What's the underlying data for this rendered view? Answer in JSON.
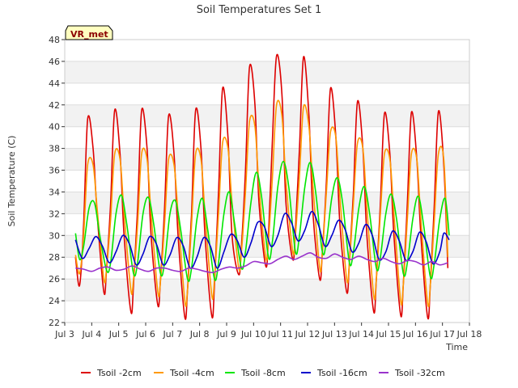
{
  "chart_data": {
    "type": "line",
    "title": "Soil Temperatures Set 1",
    "xlabel": "Time",
    "ylabel": "Soil Temperature (C)",
    "badge": "VR_met",
    "xlim": [
      3,
      18
    ],
    "ylim": [
      22,
      48
    ],
    "x_ticks": [
      {
        "x": 3,
        "label": "Jul 3"
      },
      {
        "x": 4,
        "label": "Jul 4"
      },
      {
        "x": 5,
        "label": "Jul 5"
      },
      {
        "x": 6,
        "label": "Jul 6"
      },
      {
        "x": 7,
        "label": "Jul 7"
      },
      {
        "x": 8,
        "label": "Jul 8"
      },
      {
        "x": 9,
        "label": "Jul 9"
      },
      {
        "x": 10,
        "label": "Jul 10"
      },
      {
        "x": 11,
        "label": "Jul 11"
      },
      {
        "x": 12,
        "label": "Jul 12"
      },
      {
        "x": 13,
        "label": "Jul 13"
      },
      {
        "x": 14,
        "label": "Jul 14"
      },
      {
        "x": 15,
        "label": "Jul 15"
      },
      {
        "x": 16,
        "label": "Jul 16"
      },
      {
        "x": 17,
        "label": "Jul 17"
      },
      {
        "x": 18,
        "label": "Jul 18"
      }
    ],
    "y_ticks": [
      22,
      24,
      26,
      28,
      30,
      32,
      34,
      36,
      38,
      40,
      42,
      44,
      46,
      48
    ],
    "grid": "horizontal bands",
    "legend_position": "bottom",
    "series": [
      {
        "name": "Tsoil -2cm",
        "color": "#dd0000",
        "x": [
          3.4,
          3.55,
          3.7,
          3.85,
          4.05,
          4.2,
          4.45,
          4.55,
          4.7,
          4.85,
          5.05,
          5.2,
          5.45,
          5.55,
          5.7,
          5.85,
          6.05,
          6.2,
          6.45,
          6.55,
          6.7,
          6.85,
          7.05,
          7.2,
          7.45,
          7.55,
          7.7,
          7.85,
          8.05,
          8.2,
          8.45,
          8.55,
          8.7,
          8.85,
          9.05,
          9.2,
          9.45,
          9.55,
          9.7,
          9.85,
          10.05,
          10.2,
          10.45,
          10.55,
          10.7,
          10.85,
          11.05,
          11.2,
          11.45,
          11.55,
          11.7,
          11.85,
          12.05,
          12.2,
          12.45,
          12.55,
          12.7,
          12.85,
          13.05,
          13.2,
          13.45,
          13.55,
          13.7,
          13.85,
          14.05,
          14.2,
          14.45,
          14.55,
          14.7,
          14.85,
          15.05,
          15.2,
          15.45,
          15.55,
          15.7,
          15.85,
          16.05,
          16.2,
          16.45,
          16.55,
          16.7,
          16.85,
          17.05,
          17.2
        ],
        "y": [
          28.0,
          25.4,
          31.0,
          40.7,
          38.0,
          32.0,
          24.8,
          27.0,
          33.0,
          41.5,
          37.5,
          30.0,
          23.0,
          25.5,
          32.5,
          41.5,
          38.0,
          30.0,
          23.6,
          26.0,
          32.5,
          41.0,
          37.5,
          30.0,
          22.5,
          25.0,
          32.0,
          41.5,
          38.0,
          30.0,
          22.6,
          25.5,
          34.0,
          43.5,
          39.0,
          30.0,
          26.4,
          29.0,
          36.0,
          45.5,
          42.0,
          33.0,
          27.2,
          30.0,
          39.0,
          46.5,
          43.0,
          33.0,
          27.8,
          30.5,
          38.0,
          46.4,
          41.0,
          32.0,
          26.0,
          28.5,
          35.0,
          43.5,
          39.0,
          31.0,
          24.8,
          27.5,
          34.0,
          42.3,
          38.0,
          30.0,
          23.0,
          26.0,
          33.0,
          41.2,
          37.5,
          30.0,
          22.7,
          25.5,
          33.0,
          41.3,
          37.0,
          30.0,
          22.5,
          25.5,
          33.0,
          41.4,
          36.5,
          27.0
        ]
      },
      {
        "name": "Tsoil -4cm",
        "color": "#ff9900",
        "x": [
          3.4,
          3.55,
          3.7,
          3.85,
          4.05,
          4.2,
          4.45,
          4.55,
          4.7,
          4.85,
          5.05,
          5.2,
          5.45,
          5.55,
          5.7,
          5.85,
          6.05,
          6.2,
          6.45,
          6.55,
          6.7,
          6.85,
          7.05,
          7.2,
          7.45,
          7.55,
          7.7,
          7.85,
          8.05,
          8.2,
          8.45,
          8.55,
          8.7,
          8.85,
          9.05,
          9.2,
          9.45,
          9.55,
          9.7,
          9.85,
          10.05,
          10.2,
          10.45,
          10.55,
          10.7,
          10.85,
          11.05,
          11.2,
          11.45,
          11.55,
          11.7,
          11.85,
          12.05,
          12.2,
          12.45,
          12.55,
          12.7,
          12.85,
          13.05,
          13.2,
          13.45,
          13.55,
          13.7,
          13.85,
          14.05,
          14.2,
          14.45,
          14.55,
          14.7,
          14.85,
          15.05,
          15.2,
          15.45,
          15.55,
          15.7,
          15.85,
          16.05,
          16.2,
          16.45,
          16.55,
          16.7,
          16.85,
          17.05,
          17.2
        ],
        "y": [
          28.2,
          26.5,
          30.0,
          36.5,
          36.5,
          32.5,
          26.0,
          27.0,
          31.5,
          37.5,
          37.0,
          32.0,
          25.0,
          26.0,
          31.0,
          37.5,
          37.0,
          32.0,
          24.8,
          25.8,
          31.0,
          37.0,
          36.5,
          32.0,
          24.0,
          25.0,
          31.0,
          37.5,
          37.0,
          32.0,
          24.5,
          26.0,
          32.0,
          38.5,
          38.0,
          33.0,
          27.0,
          28.5,
          34.0,
          40.5,
          40.0,
          34.5,
          28.0,
          29.5,
          35.5,
          42.0,
          41.0,
          35.0,
          28.5,
          30.0,
          35.5,
          41.8,
          40.0,
          34.5,
          27.0,
          28.5,
          34.0,
          39.5,
          39.0,
          33.5,
          26.0,
          27.5,
          33.0,
          38.5,
          38.0,
          32.5,
          24.5,
          26.0,
          32.0,
          37.5,
          37.0,
          32.0,
          24.0,
          25.5,
          31.5,
          37.5,
          37.0,
          31.5,
          23.8,
          25.5,
          31.5,
          37.5,
          37.0,
          28.0
        ]
      },
      {
        "name": "Tsoil -8cm",
        "color": "#00e600",
        "x": [
          3.4,
          3.55,
          3.7,
          3.9,
          4.1,
          4.3,
          4.55,
          4.7,
          4.9,
          5.1,
          5.3,
          5.55,
          5.7,
          5.9,
          6.1,
          6.3,
          6.55,
          6.7,
          6.9,
          7.1,
          7.3,
          7.55,
          7.7,
          7.9,
          8.1,
          8.3,
          8.55,
          8.7,
          8.9,
          9.1,
          9.3,
          9.55,
          9.7,
          9.9,
          10.1,
          10.3,
          10.55,
          10.7,
          10.9,
          11.1,
          11.3,
          11.55,
          11.7,
          11.9,
          12.1,
          12.3,
          12.55,
          12.7,
          12.9,
          13.1,
          13.3,
          13.55,
          13.7,
          13.9,
          14.1,
          14.3,
          14.55,
          14.7,
          14.9,
          15.1,
          15.3,
          15.55,
          15.7,
          15.9,
          16.1,
          16.3,
          16.55,
          16.7,
          16.9,
          17.1,
          17.25
        ],
        "y": [
          30.2,
          27.8,
          29.0,
          32.5,
          33.0,
          30.0,
          26.8,
          27.5,
          32.0,
          33.7,
          31.0,
          26.5,
          27.5,
          32.0,
          33.5,
          31.0,
          26.5,
          27.5,
          32.0,
          33.2,
          30.5,
          26.0,
          27.0,
          31.5,
          33.4,
          30.5,
          26.0,
          27.5,
          32.0,
          34.0,
          31.0,
          27.0,
          28.5,
          33.0,
          35.8,
          33.5,
          28.0,
          29.5,
          34.5,
          36.8,
          34.5,
          28.5,
          30.0,
          34.5,
          36.7,
          34.0,
          28.5,
          29.5,
          33.5,
          35.3,
          33.0,
          27.5,
          28.5,
          32.5,
          34.5,
          32.0,
          27.0,
          28.0,
          32.0,
          33.8,
          31.5,
          26.5,
          27.5,
          31.5,
          33.6,
          31.0,
          26.2,
          27.5,
          31.5,
          33.4,
          30.0
        ]
      },
      {
        "name": "Tsoil -16cm",
        "color": "#0000cc",
        "x": [
          3.4,
          3.65,
          3.9,
          4.15,
          4.4,
          4.65,
          4.9,
          5.15,
          5.4,
          5.65,
          5.9,
          6.15,
          6.4,
          6.65,
          6.9,
          7.15,
          7.4,
          7.65,
          7.9,
          8.15,
          8.4,
          8.65,
          8.9,
          9.15,
          9.4,
          9.65,
          9.9,
          10.15,
          10.4,
          10.65,
          10.9,
          11.15,
          11.4,
          11.65,
          11.9,
          12.15,
          12.4,
          12.65,
          12.9,
          13.15,
          13.4,
          13.65,
          13.9,
          14.15,
          14.4,
          14.65,
          14.9,
          15.15,
          15.4,
          15.65,
          15.9,
          16.15,
          16.4,
          16.65,
          16.9,
          17.05,
          17.25
        ],
        "y": [
          29.6,
          27.9,
          28.8,
          29.9,
          29.0,
          27.5,
          28.5,
          30.0,
          29.2,
          27.3,
          28.3,
          29.9,
          29.2,
          27.3,
          28.2,
          29.8,
          29.0,
          27.0,
          28.0,
          29.8,
          29.0,
          27.0,
          28.5,
          30.1,
          29.5,
          28.0,
          29.3,
          31.2,
          30.8,
          29.0,
          30.0,
          32.0,
          31.2,
          29.5,
          30.5,
          32.2,
          31.0,
          29.0,
          30.0,
          31.4,
          30.5,
          28.5,
          29.3,
          31.0,
          30.0,
          27.8,
          28.5,
          30.4,
          29.5,
          27.7,
          28.5,
          30.3,
          29.4,
          27.4,
          28.5,
          30.2,
          29.6
        ]
      },
      {
        "name": "Tsoil -32cm",
        "color": "#9933cc",
        "x": [
          3.4,
          3.7,
          4.0,
          4.3,
          4.6,
          4.9,
          5.2,
          5.5,
          5.8,
          6.1,
          6.4,
          6.7,
          7.0,
          7.3,
          7.6,
          7.9,
          8.2,
          8.5,
          8.8,
          9.1,
          9.4,
          9.7,
          10.0,
          10.3,
          10.6,
          10.9,
          11.2,
          11.5,
          11.8,
          12.1,
          12.4,
          12.7,
          13.0,
          13.3,
          13.6,
          13.9,
          14.2,
          14.5,
          14.8,
          15.1,
          15.4,
          15.7,
          16.0,
          16.3,
          16.6,
          16.9,
          17.2
        ],
        "y": [
          27.0,
          26.9,
          26.7,
          27.0,
          27.1,
          26.8,
          26.9,
          27.2,
          26.9,
          26.7,
          27.0,
          27.0,
          26.8,
          26.7,
          27.0,
          26.9,
          26.7,
          26.6,
          26.9,
          27.1,
          27.0,
          27.2,
          27.6,
          27.5,
          27.4,
          27.8,
          28.1,
          27.8,
          28.1,
          28.4,
          28.0,
          27.9,
          28.3,
          28.0,
          27.8,
          28.1,
          27.8,
          27.6,
          27.9,
          27.6,
          27.4,
          27.7,
          27.6,
          27.3,
          27.6,
          27.3,
          27.5
        ]
      }
    ]
  }
}
